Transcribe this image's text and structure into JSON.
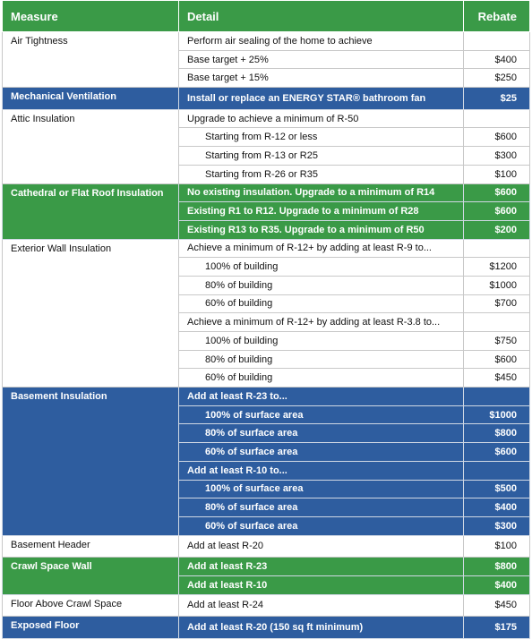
{
  "table": {
    "header_color": "#3a9a47",
    "columns": [
      "Measure",
      "Detail",
      "Rebate"
    ],
    "groups": [
      {
        "measure": "Air Tightness",
        "rows": [
          {
            "detail": "Perform air sealing of the home to achieve",
            "rebate": null
          },
          {
            "detail": "Base target + 25%",
            "rebate": "$400"
          },
          {
            "detail": "Base target + 15%",
            "rebate": "$250"
          }
        ]
      },
      {
        "measure": "Mechanical Ventilation",
        "color": "#2e5d9f",
        "rows": [
          {
            "detail": "Install or replace an ENERGY STAR® bathroom fan",
            "rebate": "$25"
          }
        ]
      },
      {
        "measure": "Attic Insulation",
        "rows": [
          {
            "detail": "Upgrade to achieve a minimum of R-50",
            "rebate": null
          },
          {
            "detail": "Starting from R-12 or less",
            "rebate": "$600",
            "indent": true
          },
          {
            "detail": "Starting from R-13 or R25",
            "rebate": "$300",
            "indent": true
          },
          {
            "detail": "Starting from R-26 or R35",
            "rebate": "$100",
            "indent": true
          }
        ]
      },
      {
        "measure": "Cathedral or Flat Roof Insulation",
        "color": "#3a9a47",
        "rows": [
          {
            "detail": "No existing insulation.  Upgrade to a minimum of R14",
            "rebate": "$600"
          },
          {
            "detail": "Existing R1 to R12.  Upgrade to a minimum of R28",
            "rebate": "$600"
          },
          {
            "detail": "Existing R13 to R35.  Upgrade to a minimum of R50",
            "rebate": "$200"
          }
        ]
      },
      {
        "measure": "Exterior Wall Insulation",
        "rows": [
          {
            "detail": "Achieve a minimum of R-12+ by adding at least R-9 to...",
            "rebate": null
          },
          {
            "detail": "100% of building",
            "rebate": "$1200",
            "indent": true
          },
          {
            "detail": "80% of building",
            "rebate": "$1000",
            "indent": true
          },
          {
            "detail": "60% of building",
            "rebate": "$700",
            "indent": true
          },
          {
            "detail": "Achieve a minimum of R-12+ by adding at least R-3.8 to...",
            "rebate": null
          },
          {
            "detail": "100% of building",
            "rebate": "$750",
            "indent": true
          },
          {
            "detail": "80% of building",
            "rebate": "$600",
            "indent": true
          },
          {
            "detail": "60% of building",
            "rebate": "$450",
            "indent": true
          }
        ]
      },
      {
        "measure": "Basement Insulation",
        "color": "#2e5d9f",
        "rows": [
          {
            "detail": "Add at least R-23 to...",
            "rebate": null
          },
          {
            "detail": "100% of surface area",
            "rebate": "$1000",
            "indent": true
          },
          {
            "detail": "80% of surface area",
            "rebate": "$800",
            "indent": true
          },
          {
            "detail": "60% of surface area",
            "rebate": "$600",
            "indent": true
          },
          {
            "detail": "Add at least R-10 to...",
            "rebate": null
          },
          {
            "detail": "100% of surface area",
            "rebate": "$500",
            "indent": true
          },
          {
            "detail": "80% of surface area",
            "rebate": "$400",
            "indent": true
          },
          {
            "detail": "60% of surface area",
            "rebate": "$300",
            "indent": true
          }
        ]
      },
      {
        "measure": "Basement Header",
        "rows": [
          {
            "detail": "Add at least R-20",
            "rebate": "$100"
          }
        ]
      },
      {
        "measure": "Crawl Space Wall",
        "color": "#3a9a47",
        "rows": [
          {
            "detail": "Add at least R-23",
            "rebate": "$800"
          },
          {
            "detail": "Add at least R-10",
            "rebate": "$400"
          }
        ]
      },
      {
        "measure": "Floor Above Crawl Space",
        "rows": [
          {
            "detail": "Add at least R-24",
            "rebate": "$450"
          }
        ]
      },
      {
        "measure": "Exposed Floor",
        "color": "#2e5d9f",
        "rows": [
          {
            "detail": "Add at least R-20 (150 sq ft minimum)",
            "rebate": "$175"
          }
        ]
      }
    ]
  }
}
